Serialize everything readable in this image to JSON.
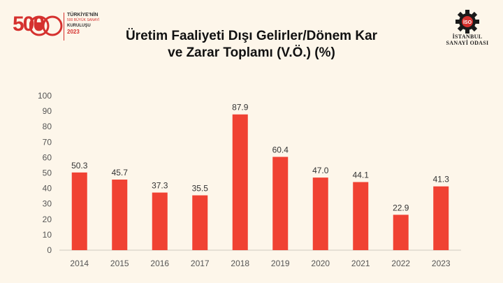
{
  "logo_left": {
    "number": "500",
    "line1": "TÜRKİYE'NİN",
    "line2": "500 BÜYÜK SANAYİ",
    "line3": "KURULUŞU",
    "line4": "2023"
  },
  "logo_right": {
    "mark": "İSO",
    "line1": "İSTANBUL",
    "line2": "SANAYİ ODASI"
  },
  "colors": {
    "bar": "#f04233",
    "background": "#fdf6ea",
    "brand": "#d5312e"
  },
  "chart_data": {
    "type": "bar",
    "title_line1": "Üretim Faaliyeti Dışı Gelirler/Dönem Kar",
    "title_line2": "ve Zarar Toplamı (V.Ö.) (%)",
    "categories": [
      "2014",
      "2015",
      "2016",
      "2017",
      "2018",
      "2019",
      "2020",
      "2021",
      "2022",
      "2023"
    ],
    "values": [
      50.3,
      45.7,
      37.3,
      35.5,
      87.9,
      60.4,
      47.0,
      44.1,
      22.9,
      41.3
    ],
    "value_labels": [
      "50.3",
      "45.7",
      "37.3",
      "35.5",
      "87.9",
      "60.4",
      "47.0",
      "44.1",
      "22.9",
      "41.3"
    ],
    "yticks": [
      "0",
      "10",
      "20",
      "30",
      "40",
      "50",
      "60",
      "70",
      "80",
      "90",
      "100"
    ],
    "ylim": [
      0,
      100
    ],
    "grid": false,
    "legend": "none"
  }
}
